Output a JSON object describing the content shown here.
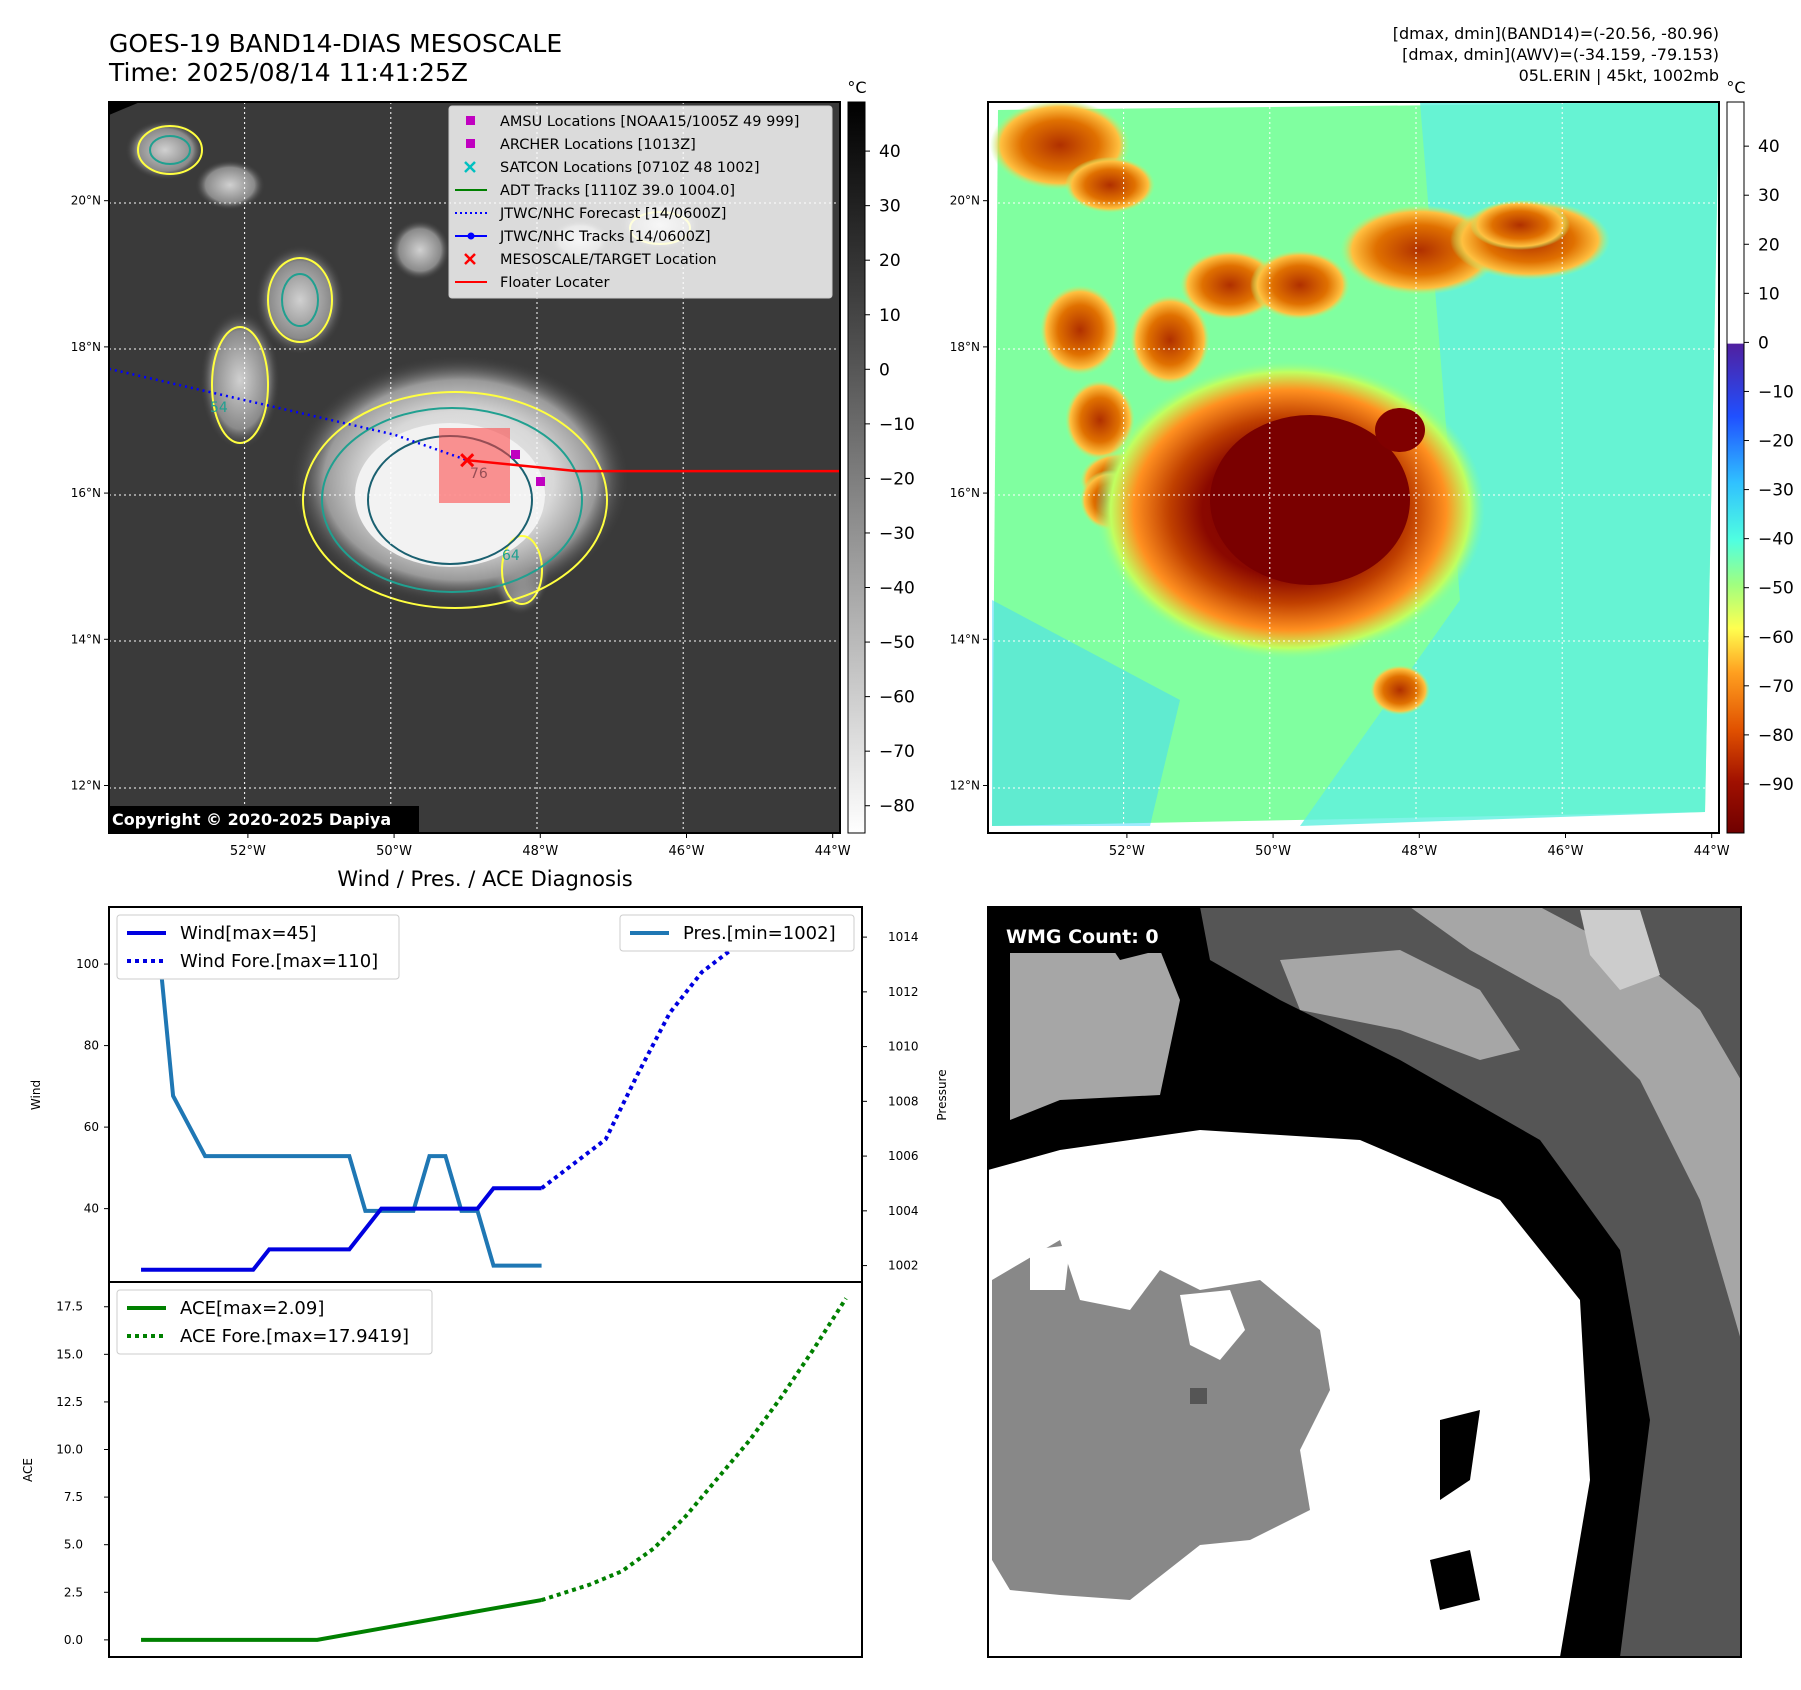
{
  "header": {
    "title_line1": "GOES-19 BAND14-DIAS MESOSCALE",
    "title_line2": "Time: 2025/08/14 11:41:25Z",
    "stats_line1": "[dmax, dmin](BAND14)=(-20.56, -80.96)",
    "stats_line2": "[dmax, dmin](AWV)=(-34.159, -79.153)",
    "stats_line3": "05L.ERIN | 45kt, 1002mb"
  },
  "map": {
    "lon_ticks": [
      "52°W",
      "50°W",
      "48°W",
      "46°W",
      "44°W"
    ],
    "lon_values": [
      -52,
      -50,
      -48,
      -46,
      -44
    ],
    "lat_ticks": [
      "20°N",
      "18°N",
      "16°N",
      "14°N",
      "12°N"
    ],
    "lat_values": [
      20,
      18,
      16,
      14,
      12
    ],
    "lon_range": [
      -53.9,
      -43.9
    ],
    "lat_range": [
      11.35,
      21.35
    ],
    "copyright": "Copyright © 2020-2025 Dapiya",
    "contour_labels": [
      "54",
      "64",
      "76"
    ],
    "legend": [
      {
        "label": "AMSU Locations [NOAA15/1005Z 49 999]",
        "kind": "square",
        "color": "#c000c0"
      },
      {
        "label": "ARCHER Locations [1013Z]",
        "kind": "square",
        "color": "#c000c0"
      },
      {
        "label": "SATCON Locations [0710Z 48 1002]",
        "kind": "x",
        "color": "#00c0c0"
      },
      {
        "label": "ADT Tracks [1110Z 39.0 1004.0]",
        "kind": "line",
        "color": "#008000"
      },
      {
        "label": "JTWC/NHC Forecast [14/0600Z]",
        "kind": "dotted",
        "color": "#0000ff"
      },
      {
        "label": "JTWC/NHC Tracks [14/0600Z]",
        "kind": "line-dot",
        "color": "#0000ff"
      },
      {
        "label": "MESOSCALE/TARGET Location",
        "kind": "x",
        "color": "#ff0000"
      },
      {
        "label": "Floater Locater",
        "kind": "line",
        "color": "#ff0000"
      }
    ],
    "track_points": [
      {
        "lon": -53.9,
        "lat": 17.7
      },
      {
        "lon": -50.0,
        "lat": 16.8
      },
      {
        "lon": -49.0,
        "lat": 16.45
      },
      {
        "lon": -47.5,
        "lat": 16.3
      },
      {
        "lon": -43.9,
        "lat": 16.3
      }
    ],
    "target": {
      "lon": -49.0,
      "lat": 16.45
    }
  },
  "colorbar_ir": {
    "unit": "°C",
    "ticks": [
      "40",
      "30",
      "20",
      "10",
      "0",
      "−10",
      "−20",
      "−30",
      "−40",
      "−50",
      "−60",
      "−70",
      "−80"
    ],
    "tick_values": [
      40,
      30,
      20,
      10,
      0,
      -10,
      -20,
      -30,
      -40,
      -50,
      -60,
      -70,
      -80
    ],
    "range": [
      -85,
      49
    ]
  },
  "colorbar_awv": {
    "unit": "°C",
    "ticks": [
      "40",
      "30",
      "20",
      "10",
      "0",
      "−10",
      "−20",
      "−30",
      "−40",
      "−50",
      "−60",
      "−70",
      "−80",
      "−90"
    ],
    "tick_values": [
      40,
      30,
      20,
      10,
      0,
      -10,
      -20,
      -30,
      -40,
      -50,
      -60,
      -70,
      -80,
      -90
    ],
    "range": [
      -100,
      49
    ]
  },
  "colors": {
    "wind": "#0000e0",
    "pressure": "#1f77b4",
    "ace": "#008000",
    "ir_cloud": "#ffffff",
    "awv_background": "#80ffa0",
    "awv_core": "#800000"
  },
  "diagnosis_title": "Wind / Pres. / ACE Diagnosis",
  "wmg": {
    "label": "WMG Count: 0",
    "gray_levels": [
      "#000000",
      "#555555",
      "#888888",
      "#a6a6a6",
      "#cccccc",
      "#ffffff"
    ]
  },
  "chart_data": [
    {
      "type": "line",
      "title": "Wind / Pres. / ACE Diagnosis",
      "xlabel": "",
      "ylabel": "Wind",
      "ylabel_right": "Pressure",
      "yticks": [
        "40",
        "60",
        "80",
        "100"
      ],
      "ytick_values": [
        40,
        60,
        80,
        100
      ],
      "ylim": [
        22,
        114
      ],
      "yticks_right": [
        "1002",
        "1004",
        "1006",
        "1008",
        "1010",
        "1012",
        "1014"
      ],
      "ytick_values_right": [
        1002,
        1004,
        1006,
        1008,
        1010,
        1012,
        1014
      ],
      "ylim_right": [
        1001.4,
        1015.1
      ],
      "xlim": [
        -2,
        45
      ],
      "legend_left": [
        "Wind[max=45]",
        "Wind Fore.[max=110]"
      ],
      "legend_right": [
        "Pres.[min=1002]"
      ],
      "series": [
        {
          "name": "Wind[max=45]",
          "style": "solid",
          "axis": "left",
          "x": [
            0,
            7,
            8,
            13,
            15,
            18,
            19,
            21,
            22,
            25
          ],
          "y": [
            25,
            25,
            30,
            30,
            40,
            40,
            40,
            40,
            45,
            45
          ]
        },
        {
          "name": "Wind Fore.[max=110]",
          "style": "dotted",
          "axis": "left",
          "x": [
            25,
            29,
            31,
            33,
            35,
            37,
            39,
            41,
            43
          ],
          "y": [
            45,
            57,
            73,
            88,
            98,
            104,
            108,
            110,
            110
          ]
        },
        {
          "name": "Pres.[min=1002]",
          "style": "solid",
          "axis": "right",
          "x": [
            0,
            1,
            2,
            4,
            13,
            14,
            17,
            18,
            19,
            20,
            21,
            22,
            25
          ],
          "y": [
            1014.3,
            1014.3,
            1008.2,
            1006,
            1006,
            1004,
            1004,
            1006,
            1006,
            1004,
            1004,
            1002,
            1002
          ]
        }
      ]
    },
    {
      "type": "line",
      "title": "",
      "xlabel": "",
      "ylabel": "ACE",
      "yticks": [
        "0.0",
        "2.5",
        "5.0",
        "7.5",
        "10.0",
        "12.5",
        "15.0",
        "17.5"
      ],
      "ytick_values": [
        0,
        2.5,
        5,
        7.5,
        10,
        12.5,
        15,
        17.5
      ],
      "ylim": [
        -0.9,
        18.8
      ],
      "xlim": [
        -2,
        45
      ],
      "legend": [
        "ACE[max=2.09]",
        "ACE Fore.[max=17.9419]"
      ],
      "series": [
        {
          "name": "ACE[max=2.09]",
          "style": "solid",
          "x": [
            0,
            11,
            15,
            19,
            22,
            25
          ],
          "y": [
            0,
            0,
            0.6,
            1.2,
            1.65,
            2.09
          ]
        },
        {
          "name": "ACE Fore.[max=17.9419]",
          "style": "dotted",
          "x": [
            25,
            28,
            30,
            32,
            34,
            36,
            38,
            40,
            42,
            44
          ],
          "y": [
            2.09,
            2.9,
            3.6,
            4.8,
            6.5,
            8.5,
            10.5,
            12.8,
            15.3,
            17.94
          ]
        }
      ]
    }
  ]
}
